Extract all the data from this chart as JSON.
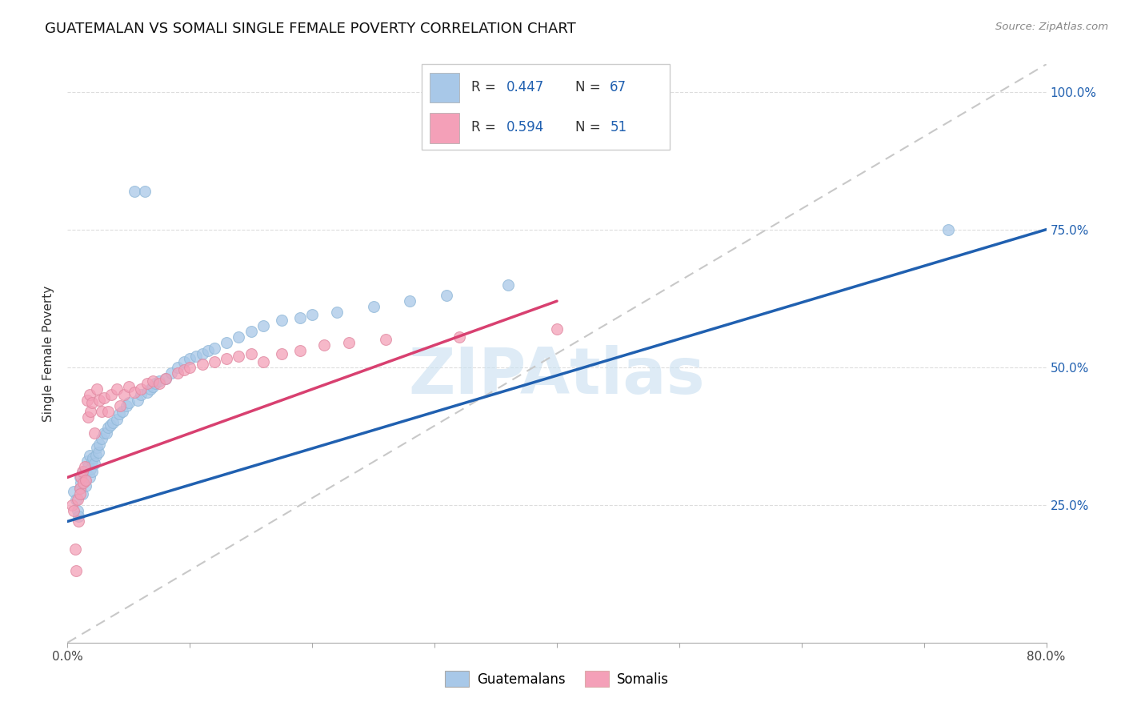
{
  "title": "GUATEMALAN VS SOMALI SINGLE FEMALE POVERTY CORRELATION CHART",
  "source": "Source: ZipAtlas.com",
  "ylabel": "Single Female Poverty",
  "xlim": [
    0.0,
    0.8
  ],
  "ylim": [
    0.0,
    1.05
  ],
  "guatemalan_color": "#a8c8e8",
  "somali_color": "#f4a0b8",
  "blue_line_color": "#2060b0",
  "pink_line_color": "#d84070",
  "dashed_line_color": "#c8c8c8",
  "watermark_color": "#c8dff0",
  "r_guatemalan": 0.447,
  "n_guatemalan": 67,
  "r_somali": 0.594,
  "n_somali": 51,
  "title_fontsize": 13,
  "axis_label_fontsize": 11,
  "tick_fontsize": 11,
  "legend_fontsize": 12,
  "guatemalan_x": [
    0.005,
    0.007,
    0.008,
    0.009,
    0.01,
    0.01,
    0.011,
    0.012,
    0.013,
    0.014,
    0.015,
    0.015,
    0.016,
    0.017,
    0.018,
    0.018,
    0.019,
    0.02,
    0.02,
    0.021,
    0.022,
    0.023,
    0.024,
    0.025,
    0.026,
    0.028,
    0.03,
    0.032,
    0.033,
    0.035,
    0.037,
    0.04,
    0.042,
    0.045,
    0.048,
    0.05,
    0.055,
    0.057,
    0.06,
    0.063,
    0.065,
    0.068,
    0.07,
    0.072,
    0.075,
    0.08,
    0.085,
    0.09,
    0.095,
    0.1,
    0.105,
    0.11,
    0.115,
    0.12,
    0.13,
    0.14,
    0.15,
    0.16,
    0.175,
    0.19,
    0.2,
    0.22,
    0.25,
    0.28,
    0.31,
    0.36,
    0.72
  ],
  "guatemalan_y": [
    0.275,
    0.26,
    0.24,
    0.23,
    0.28,
    0.3,
    0.29,
    0.27,
    0.31,
    0.295,
    0.285,
    0.31,
    0.33,
    0.32,
    0.3,
    0.34,
    0.315,
    0.31,
    0.33,
    0.335,
    0.325,
    0.34,
    0.355,
    0.345,
    0.36,
    0.37,
    0.38,
    0.38,
    0.39,
    0.395,
    0.4,
    0.405,
    0.415,
    0.42,
    0.43,
    0.435,
    0.82,
    0.44,
    0.45,
    0.82,
    0.455,
    0.46,
    0.465,
    0.47,
    0.475,
    0.48,
    0.49,
    0.5,
    0.51,
    0.515,
    0.52,
    0.525,
    0.53,
    0.535,
    0.545,
    0.555,
    0.565,
    0.575,
    0.585,
    0.59,
    0.595,
    0.6,
    0.61,
    0.62,
    0.63,
    0.65,
    0.75
  ],
  "somali_x": [
    0.004,
    0.005,
    0.006,
    0.007,
    0.008,
    0.009,
    0.01,
    0.01,
    0.011,
    0.012,
    0.013,
    0.014,
    0.015,
    0.016,
    0.017,
    0.018,
    0.019,
    0.02,
    0.022,
    0.024,
    0.026,
    0.028,
    0.03,
    0.033,
    0.036,
    0.04,
    0.043,
    0.046,
    0.05,
    0.055,
    0.06,
    0.065,
    0.07,
    0.075,
    0.08,
    0.09,
    0.095,
    0.1,
    0.11,
    0.12,
    0.13,
    0.14,
    0.15,
    0.16,
    0.175,
    0.19,
    0.21,
    0.23,
    0.26,
    0.32,
    0.4
  ],
  "somali_y": [
    0.25,
    0.24,
    0.17,
    0.13,
    0.26,
    0.22,
    0.28,
    0.27,
    0.3,
    0.31,
    0.29,
    0.32,
    0.295,
    0.44,
    0.41,
    0.45,
    0.42,
    0.435,
    0.38,
    0.46,
    0.44,
    0.42,
    0.445,
    0.42,
    0.45,
    0.46,
    0.43,
    0.45,
    0.465,
    0.455,
    0.46,
    0.47,
    0.475,
    0.47,
    0.48,
    0.49,
    0.495,
    0.5,
    0.505,
    0.51,
    0.515,
    0.52,
    0.525,
    0.51,
    0.525,
    0.53,
    0.54,
    0.545,
    0.55,
    0.555,
    0.57
  ],
  "blue_line_x0": 0.0,
  "blue_line_y0": 0.22,
  "blue_line_x1": 0.8,
  "blue_line_y1": 0.75,
  "pink_line_x0": 0.0,
  "pink_line_y0": 0.3,
  "pink_line_x1": 0.4,
  "pink_line_y1": 0.62,
  "dash_line_x0": 0.0,
  "dash_line_y0": 0.0,
  "dash_line_x1": 0.8,
  "dash_line_y1": 1.05
}
